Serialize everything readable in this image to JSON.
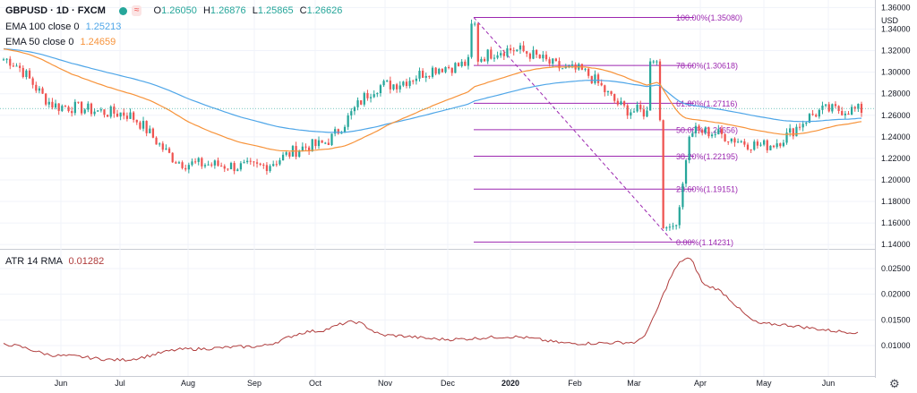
{
  "legend": {
    "symbol": "GBPUSD",
    "interval": "1D",
    "exchange": "FXCM",
    "ohlc": [
      {
        "key": "O",
        "value": "1.26050"
      },
      {
        "key": "H",
        "value": "1.26876"
      },
      {
        "key": "L",
        "value": "1.25865"
      },
      {
        "key": "C",
        "value": "1.26626"
      }
    ],
    "ema100_label": "EMA 100 close 0",
    "ema100_value": "1.25213",
    "ema50_label": "EMA 50 close 0",
    "ema50_value": "1.24659",
    "atr_label": "ATR 14 RMA",
    "atr_value": "0.01282"
  },
  "currency": "USD",
  "colors": {
    "up": "#26a69a",
    "down": "#ef5350",
    "ema100": "#4fa6e8",
    "ema50": "#f7933a",
    "fib": "#9c27b0",
    "atr": "#b03c3c",
    "grid": "#f0f3fa"
  },
  "chart_data": [
    {
      "type": "candlestick",
      "title": "GBPUSD, 1D, FXCM",
      "x_axis_labels": [
        "Jun",
        "Jul",
        "Aug",
        "Sep",
        "Oct",
        "Nov",
        "Dec",
        "2020",
        "Feb",
        "Mar",
        "Apr",
        "May",
        "Jun"
      ],
      "y_axis_labels": [
        "1.36000",
        "1.34000",
        "1.32000",
        "1.30000",
        "1.28000",
        "1.26000",
        "1.24000",
        "1.22000",
        "1.20000",
        "1.18000",
        "1.16000",
        "1.14000"
      ],
      "ylim": [
        1.136,
        1.362
      ],
      "grid": true,
      "legend_position": "top-left",
      "last_price": 1.26626,
      "close_path": [
        [
          "May",
          1.312
        ],
        [
          "Jun",
          1.268
        ],
        [
          "Jul",
          1.262
        ],
        [
          "Aug",
          1.215
        ],
        [
          "Sep",
          1.212
        ],
        [
          "Oct",
          1.232
        ],
        [
          "Nov",
          1.288
        ],
        [
          "Dec",
          1.305
        ],
        [
          "2020",
          1.321
        ],
        [
          "Feb",
          1.302
        ],
        [
          "Mar",
          1.264
        ],
        [
          "Apr",
          1.245
        ],
        [
          "May",
          1.232
        ],
        [
          "Jun",
          1.265
        ]
      ],
      "key_points": [
        {
          "label": "late Aug low",
          "value": 1.2015
        },
        {
          "label": "Dec high",
          "value": 1.3508
        },
        {
          "label": "Mar low",
          "value": 1.1423
        },
        {
          "label": "early Jun high",
          "value": 1.2812
        }
      ],
      "series": [
        {
          "name": "EMA 100 close 0",
          "last_value": 1.25213
        },
        {
          "name": "EMA 50 close 0",
          "last_value": 1.24659
        }
      ],
      "fibonacci": [
        {
          "label": "100.00%(1.35080)",
          "value": 1.3508
        },
        {
          "label": "78.60%(1.30618)",
          "value": 1.30618
        },
        {
          "label": "61.80%(1.27116)",
          "value": 1.27116
        },
        {
          "label": "50.00%(1.24656)",
          "value": 1.24656
        },
        {
          "label": "38.20%(1.22195)",
          "value": 1.22195
        },
        {
          "label": "23.60%(1.19151)",
          "value": 1.19151
        },
        {
          "label": "0.00%(1.14231)",
          "value": 1.14231
        }
      ]
    },
    {
      "type": "line",
      "title": "ATR 14 RMA",
      "y_axis_labels": [
        "0.02500",
        "0.02000",
        "0.01500",
        "0.01000"
      ],
      "ylim": [
        0.0065,
        0.0278
      ],
      "series": [
        {
          "name": "ATR 14 RMA",
          "points": [
            [
              "May",
              0.0102
            ],
            [
              "Jun",
              0.008
            ],
            [
              "Jul",
              0.0072
            ],
            [
              "Aug",
              0.0093
            ],
            [
              "Sep",
              0.0098
            ],
            [
              "Oct",
              0.0128
            ],
            [
              "Oct (peak)",
              0.0146
            ],
            [
              "Nov",
              0.012
            ],
            [
              "Dec",
              0.0112
            ],
            [
              "2020",
              0.0117
            ],
            [
              "Feb",
              0.0104
            ],
            [
              "Mar",
              0.0106
            ],
            [
              "Mar (peak)",
              0.027
            ],
            [
              "Apr",
              0.0215
            ],
            [
              "May",
              0.0142
            ],
            [
              "Jun",
              0.0126
            ]
          ]
        }
      ]
    }
  ]
}
